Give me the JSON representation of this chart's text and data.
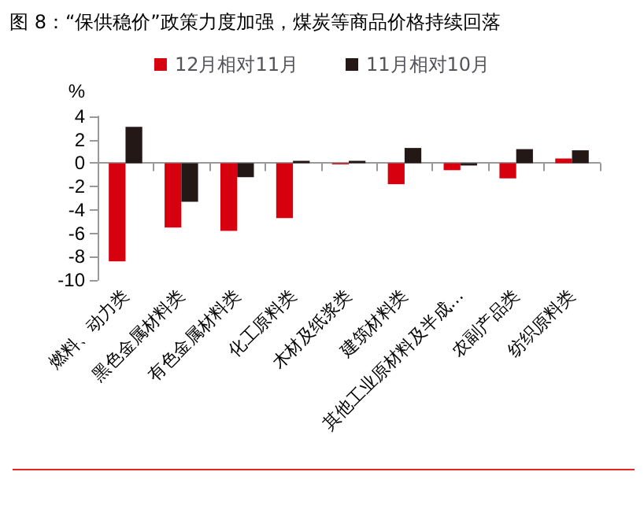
{
  "chart_data": {
    "type": "bar",
    "title": "图 8：“保供稳价”政策力度加强，煤炭等商品价格持续回落",
    "ylabel": "%",
    "categories": [
      "燃料、动力类",
      "黑色金属材料类",
      "有色金属材料类",
      "化工原料类",
      "木材及纸浆类",
      "建筑材料类",
      "其他工业原材料及半成…",
      "农副产品类",
      "纺织原料类"
    ],
    "series": [
      {
        "name": "12月相对11月",
        "color": "#d7000f",
        "values": [
          -8.4,
          -5.5,
          -5.8,
          -4.7,
          -0.1,
          -1.8,
          -0.6,
          -1.3,
          0.4
        ]
      },
      {
        "name": "11月相对10月",
        "color": "#231815",
        "values": [
          3.1,
          -3.3,
          -1.2,
          0.2,
          0.2,
          1.3,
          -0.2,
          1.2,
          1.1
        ]
      }
    ],
    "ylim": [
      -10,
      4
    ],
    "yticks": [
      -10,
      -8,
      -6,
      -4,
      -2,
      0,
      2,
      4
    ],
    "legend": "top"
  }
}
